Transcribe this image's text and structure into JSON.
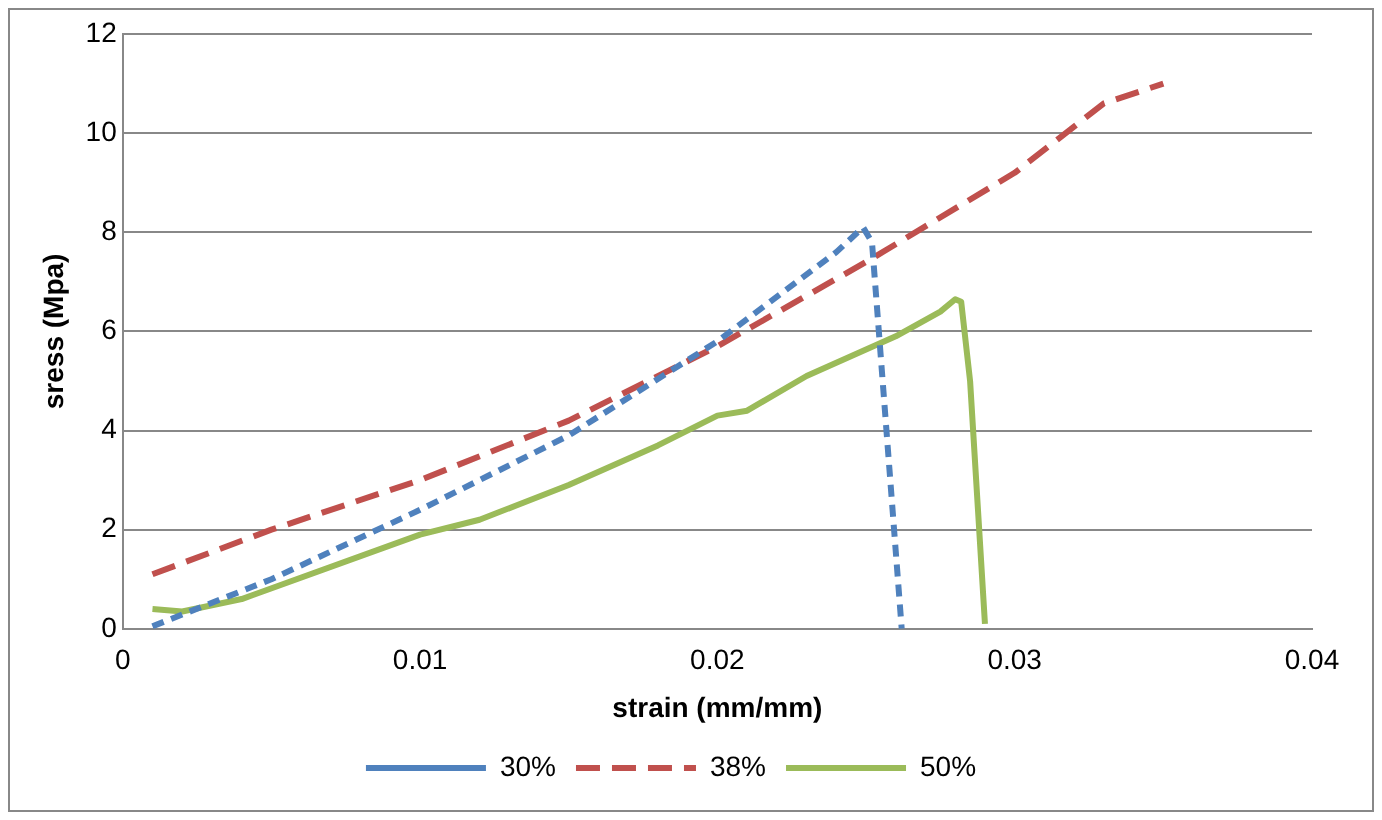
{
  "chart_data": {
    "type": "line",
    "xlabel": "strain (mm/mm)",
    "ylabel": "sress (Mpa)",
    "xlim": [
      0,
      0.04
    ],
    "xticks": [
      0,
      0.01,
      0.02,
      0.03,
      0.04
    ],
    "ylim": [
      0,
      12
    ],
    "yticks": [
      0,
      2,
      4,
      6,
      8,
      10,
      12
    ],
    "grid": "y",
    "legend": "bottom",
    "marker": "none",
    "series": [
      {
        "name": "30%",
        "color": "#4f81bd",
        "line_style": "dotted",
        "x": [
          0.001,
          0.005,
          0.01,
          0.015,
          0.02,
          0.024,
          0.0249,
          0.0252,
          0.0262
        ],
        "values": [
          0.05,
          1,
          2.4,
          3.9,
          5.8,
          7.6,
          8.1,
          7.8,
          0
        ]
      },
      {
        "name": "38%",
        "color": "#c0504d",
        "line_style": "dashed",
        "x": [
          0.001,
          0.005,
          0.01,
          0.015,
          0.02,
          0.025,
          0.03,
          0.033,
          0.035
        ],
        "values": [
          1.1,
          2,
          3,
          4.2,
          5.7,
          7.4,
          9.2,
          10.6,
          11
        ]
      },
      {
        "name": "50%",
        "color": "#9bbb59",
        "line_style": "solid",
        "x": [
          0.001,
          0.002,
          0.004,
          0.01,
          0.012,
          0.015,
          0.018,
          0.02,
          0.021,
          0.023,
          0.026,
          0.0275,
          0.028,
          0.0282,
          0.0285,
          0.029
        ],
        "values": [
          0.4,
          0.35,
          0.6,
          1.9,
          2.2,
          2.9,
          3.7,
          4.3,
          4.4,
          5.1,
          5.9,
          6.4,
          6.65,
          6.6,
          5,
          0.1
        ]
      }
    ]
  }
}
